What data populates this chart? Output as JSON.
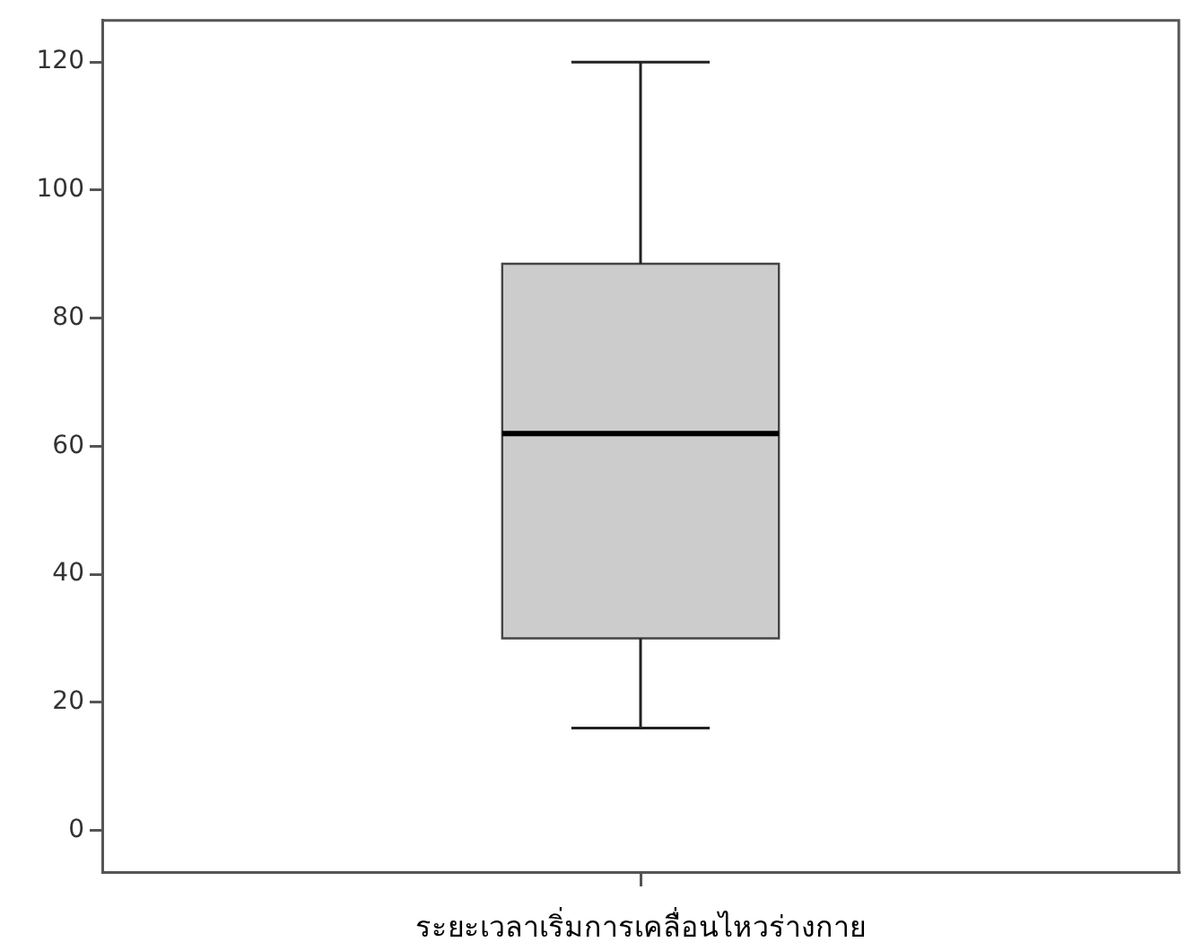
{
  "chart_data": {
    "type": "box",
    "categories": [
      "ระยะเวลาเริ่มการเคลื่อนไหวร่างกาย"
    ],
    "boxes": [
      {
        "low": 16,
        "q1": 30,
        "median": 62,
        "q3": 88.5,
        "high": 120
      }
    ],
    "color": "#cccccc",
    "ylim": [
      -6.5,
      126.5
    ],
    "yticks": [
      0,
      20,
      40,
      60,
      80,
      100,
      120
    ],
    "grid": false
  }
}
